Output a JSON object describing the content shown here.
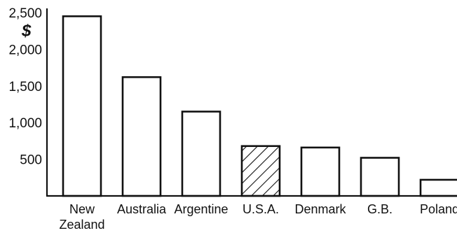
{
  "chart_data": {
    "type": "bar",
    "title": "",
    "xlabel": "",
    "ylabel": "",
    "unit_symbol": "$",
    "ylim": [
      0,
      2500
    ],
    "yticks": [
      500,
      1000,
      1500,
      2000,
      2500
    ],
    "ytick_labels": [
      "500",
      "1,000",
      "1,500",
      "2,000",
      "2,500"
    ],
    "categories": [
      "New Zealand",
      "Australia",
      "Argentine",
      "U.S.A.",
      "Denmark",
      "G.B.",
      "Poland"
    ],
    "category_label_lines": [
      [
        "New",
        "Zealand"
      ],
      [
        "Australia"
      ],
      [
        "Argentine"
      ],
      [
        "U.S.A."
      ],
      [
        "Denmark"
      ],
      [
        "G.B."
      ],
      [
        "Poland"
      ]
    ],
    "values": [
      2450,
      1620,
      1150,
      680,
      660,
      520,
      220
    ],
    "hatched": [
      false,
      false,
      false,
      true,
      false,
      false,
      false
    ],
    "grid": false,
    "legend": "none"
  }
}
